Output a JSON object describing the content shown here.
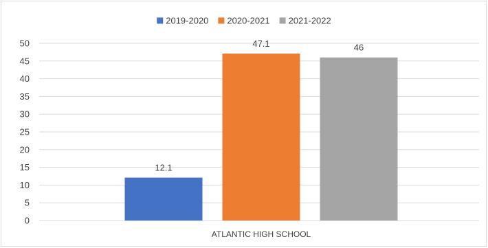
{
  "chart_data": {
    "type": "bar",
    "categories": [
      "ATLANTIC HIGH SCHOOL"
    ],
    "series": [
      {
        "name": "2019-2020",
        "values": [
          12.1
        ],
        "color": "#4472c4"
      },
      {
        "name": "2020-2021",
        "values": [
          47.1
        ],
        "color": "#ed7d31"
      },
      {
        "name": "2021-2022",
        "values": [
          46
        ],
        "color": "#a5a5a5"
      }
    ],
    "ylim": [
      0,
      50
    ],
    "yticks": [
      0,
      5,
      10,
      15,
      20,
      25,
      30,
      35,
      40,
      45,
      50
    ],
    "grid": true,
    "legend_position": "top",
    "data_labels": [
      "12.1",
      "47.1",
      "46"
    ]
  }
}
